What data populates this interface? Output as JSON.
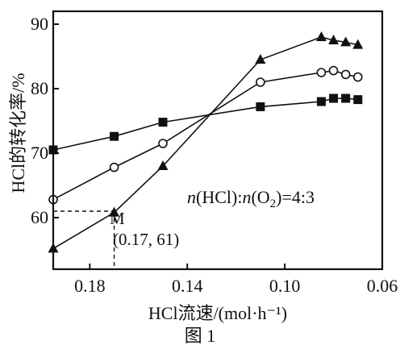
{
  "chart_data": {
    "type": "line",
    "xlabel": "HCl流速/(mol·h⁻¹)",
    "ylabel": "HCl的转化率/%",
    "xlim": [
      0.195,
      0.06
    ],
    "ylim": [
      52,
      92
    ],
    "x_ticks": [
      "0.18",
      "0.14",
      "0.10",
      "0.06"
    ],
    "y_ticks": [
      "60",
      "70",
      "80",
      "90"
    ],
    "x_tick_values": [
      0.18,
      0.14,
      0.1,
      0.06
    ],
    "y_tick_values": [
      60,
      70,
      80,
      90
    ],
    "grid": false,
    "series": [
      {
        "marker": "square-filled",
        "points": [
          [
            0.195,
            70.5
          ],
          [
            0.17,
            72.6
          ],
          [
            0.15,
            74.8
          ],
          [
            0.11,
            77.2
          ],
          [
            0.085,
            78.0
          ],
          [
            0.08,
            78.5
          ],
          [
            0.075,
            78.5
          ],
          [
            0.07,
            78.3
          ]
        ]
      },
      {
        "marker": "circle-open",
        "points": [
          [
            0.195,
            62.8
          ],
          [
            0.17,
            67.8
          ],
          [
            0.15,
            71.5
          ],
          [
            0.11,
            81.0
          ],
          [
            0.085,
            82.5
          ],
          [
            0.08,
            82.8
          ],
          [
            0.075,
            82.2
          ],
          [
            0.07,
            81.8
          ]
        ]
      },
      {
        "marker": "triangle-filled",
        "points": [
          [
            0.195,
            55.2
          ],
          [
            0.17,
            60.8
          ],
          [
            0.15,
            68.0
          ],
          [
            0.11,
            84.5
          ],
          [
            0.085,
            88.0
          ],
          [
            0.08,
            87.5
          ],
          [
            0.075,
            87.2
          ],
          [
            0.07,
            86.8
          ]
        ]
      }
    ],
    "condition_label": {
      "n1": "n",
      "formula1": "(HCl):",
      "n2": "n",
      "formula2": "(O",
      "sub": "2",
      "ratio": ")=4:3"
    },
    "annotation": {
      "point_label": "M",
      "coord_label": "(0.17, 61)",
      "x": 0.17,
      "y": 61
    },
    "caption": "图 1"
  }
}
